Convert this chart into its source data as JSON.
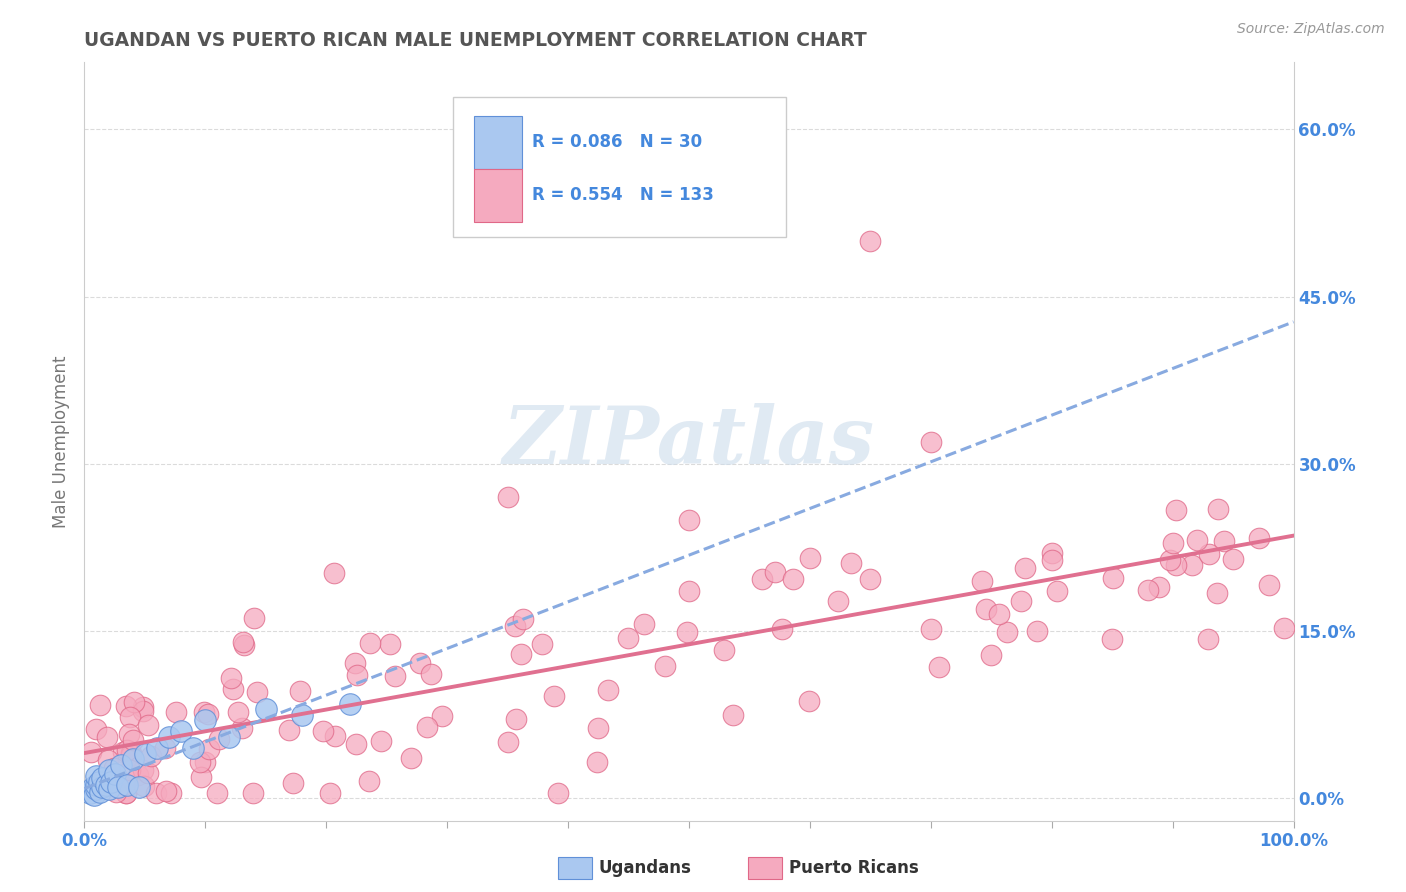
{
  "title": "UGANDAN VS PUERTO RICAN MALE UNEMPLOYMENT CORRELATION CHART",
  "source_text": "Source: ZipAtlas.com",
  "ylabel": "Male Unemployment",
  "xlim": [
    0.0,
    1.0
  ],
  "ylim": [
    -0.02,
    0.66
  ],
  "yticks": [
    0.0,
    0.15,
    0.3,
    0.45,
    0.6
  ],
  "ytick_labels": [
    "0.0%",
    "15.0%",
    "30.0%",
    "45.0%",
    "60.0%"
  ],
  "xticks": [
    0.0,
    0.1,
    0.2,
    0.3,
    0.4,
    0.5,
    0.6,
    0.7,
    0.8,
    0.9,
    1.0
  ],
  "xtick_labels": [
    "0.0%",
    "",
    "",
    "",
    "",
    "",
    "",
    "",
    "",
    "",
    "100.0%"
  ],
  "ugandan_color": "#aac8f0",
  "puerto_rican_color": "#f5aabf",
  "ugandan_edge_color": "#6090d8",
  "puerto_rican_edge_color": "#e06888",
  "regression_ugandan_color": "#88aae0",
  "regression_pr_color": "#e07090",
  "legend_R_ugandan": "0.086",
  "legend_N_ugandan": "30",
  "legend_R_pr": "0.554",
  "legend_N_pr": "133",
  "watermark": "ZIPatlas",
  "watermark_color": "#ccdcec",
  "title_color": "#555555",
  "axis_label_color": "#777777",
  "tick_label_color": "#4488dd",
  "grid_color": "#cccccc",
  "background_color": "#ffffff",
  "legend_text_color": "#4488dd",
  "legend_label_color": "#333333"
}
